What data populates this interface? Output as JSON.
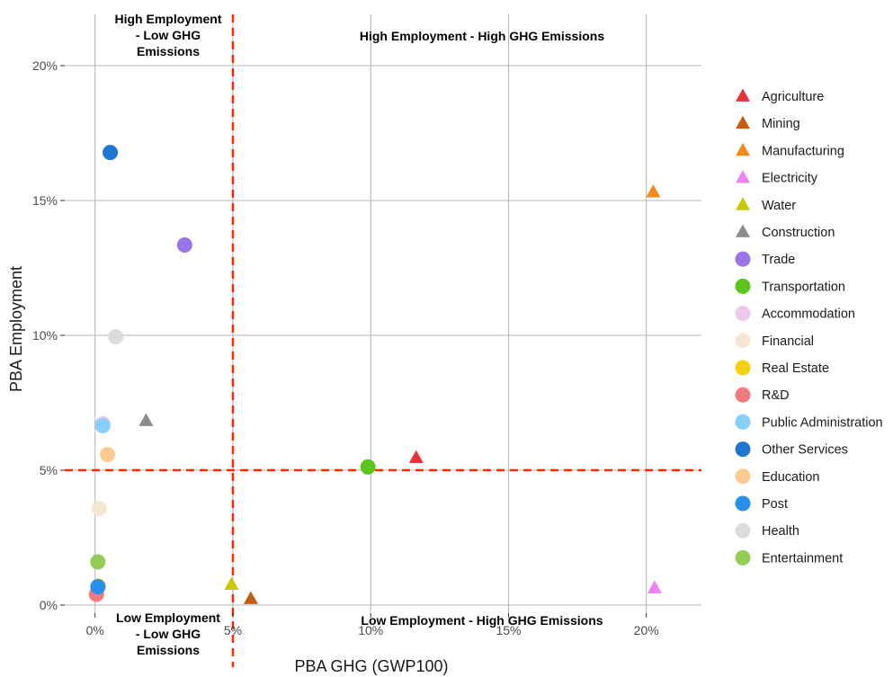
{
  "chart_data": {
    "type": "scatter",
    "xlabel": "PBA GHG (GWP100)",
    "ylabel": "PBA Employment",
    "xlim": [
      -0.011,
      0.22
    ],
    "ylim": [
      -0.003,
      0.219
    ],
    "x_ticks": [
      {
        "value": 0,
        "label": "0%"
      },
      {
        "value": 0.05,
        "label": "5%"
      },
      {
        "value": 0.1,
        "label": "10%"
      },
      {
        "value": 0.15,
        "label": "15%"
      },
      {
        "value": 0.2,
        "label": "20%"
      }
    ],
    "y_ticks": [
      {
        "value": 0,
        "label": "0%"
      },
      {
        "value": 0.05,
        "label": "5%"
      },
      {
        "value": 0.1,
        "label": "10%"
      },
      {
        "value": 0.15,
        "label": "15%"
      },
      {
        "value": 0.2,
        "label": "20%"
      }
    ],
    "grid": true,
    "legend_position": "right",
    "thresholds": {
      "x": 0.05,
      "y": 0.05,
      "color": "#ff2a00",
      "style": "dashed"
    },
    "quadrant_labels": [
      {
        "id": "top-left",
        "lines": [
          "High Employment",
          "- Low GHG",
          "Emissions"
        ]
      },
      {
        "id": "top-right",
        "lines": [
          "High Employment - High GHG Emissions"
        ]
      },
      {
        "id": "bottom-left",
        "lines": [
          "Low Employment",
          "- Low GHG",
          "Emissions"
        ]
      },
      {
        "id": "bottom-right",
        "lines": [
          "Low Employment - High GHG Emissions"
        ]
      }
    ],
    "series": [
      {
        "name": "Agriculture",
        "shape": "triangle",
        "color": "#e8333b",
        "x": 0.1165,
        "y": 0.0543
      },
      {
        "name": "Mining",
        "shape": "triangle",
        "color": "#c65c0e",
        "x": 0.0565,
        "y": 0.002
      },
      {
        "name": "Manufacturing",
        "shape": "triangle",
        "color": "#f28a19",
        "x": 0.2025,
        "y": 0.1528
      },
      {
        "name": "Electricity",
        "shape": "triangle",
        "color": "#ee82ee",
        "x": 0.203,
        "y": 0.006
      },
      {
        "name": "Water",
        "shape": "triangle",
        "color": "#c8c800",
        "x": 0.0495,
        "y": 0.0073
      },
      {
        "name": "Construction",
        "shape": "triangle",
        "color": "#8c8c8c",
        "x": 0.0185,
        "y": 0.068
      },
      {
        "name": "Trade",
        "shape": "circle",
        "color": "#9b74e6",
        "x": 0.0325,
        "y": 0.1335
      },
      {
        "name": "Transportation",
        "shape": "circle",
        "color": "#5cc41b",
        "x": 0.099,
        "y": 0.0512
      },
      {
        "name": "Accommodation",
        "shape": "circle",
        "color": "#ecc9ec",
        "x": 0.0028,
        "y": 0.0672
      },
      {
        "name": "Financial",
        "shape": "circle",
        "color": "#f6e7d5",
        "x": 0.0015,
        "y": 0.0358
      },
      {
        "name": "Real Estate",
        "shape": "circle",
        "color": "#f7d111",
        "x": 0.0012,
        "y": 0.007
      },
      {
        "name": "R&D",
        "shape": "circle",
        "color": "#ef7b7b",
        "x": 0.0005,
        "y": 0.004
      },
      {
        "name": "Public Administration",
        "shape": "circle",
        "color": "#87cefa",
        "x": 0.0028,
        "y": 0.0665
      },
      {
        "name": "Other Services",
        "shape": "circle",
        "color": "#1f77d0",
        "x": 0.0055,
        "y": 0.1678
      },
      {
        "name": "Education",
        "shape": "circle",
        "color": "#fdcb90",
        "x": 0.0045,
        "y": 0.0558
      },
      {
        "name": "Post",
        "shape": "circle",
        "color": "#2690ea",
        "x": 0.001,
        "y": 0.0068
      },
      {
        "name": "Health",
        "shape": "circle",
        "color": "#dcdcdc",
        "x": 0.0075,
        "y": 0.0995
      },
      {
        "name": "Entertainment",
        "shape": "circle",
        "color": "#95cc57",
        "x": 0.001,
        "y": 0.016
      }
    ]
  }
}
